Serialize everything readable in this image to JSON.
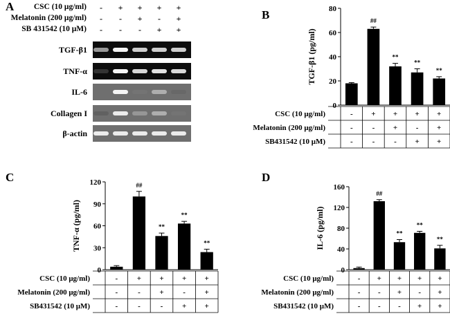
{
  "panel_a": {
    "letter": "A",
    "conditions": [
      {
        "label": "CSC (10 μg/ml)",
        "signs": [
          "-",
          "+",
          "+",
          "+",
          "+"
        ]
      },
      {
        "label": "Melatonin (200 μg/ml)",
        "signs": [
          "-",
          "-",
          "+",
          "-",
          "+"
        ]
      },
      {
        "label": "SB 431542 (10 μM)",
        "signs": [
          "-",
          "-",
          "-",
          "+",
          "+"
        ]
      }
    ],
    "gels": [
      {
        "label": "TGF-β1",
        "intensity": [
          0.55,
          0.95,
          0.75,
          0.75,
          0.75
        ]
      },
      {
        "label": "TNF-α",
        "intensity": [
          0.15,
          0.95,
          0.8,
          0.85,
          0.8
        ]
      },
      {
        "label": "IL-6",
        "intensity": [
          0.0,
          0.95,
          0.3,
          0.6,
          0.2
        ]
      },
      {
        "label": "Collagen I",
        "intensity": [
          0.1,
          0.9,
          0.5,
          0.6,
          0.3
        ]
      },
      {
        "label": "β-actin",
        "intensity": [
          0.9,
          0.9,
          0.9,
          0.9,
          0.9
        ]
      }
    ]
  },
  "chart_data": [
    {
      "letter": "B",
      "type": "bar",
      "ylabel": "TGF-β1 (pg/ml)",
      "ylim": [
        0,
        80
      ],
      "yticks": [
        0,
        20,
        40,
        60,
        80
      ],
      "values": [
        18,
        63,
        32,
        27,
        22
      ],
      "errors": [
        0.6,
        1.5,
        2.5,
        3,
        1.5
      ],
      "annotations": [
        "",
        "##",
        "**",
        "**",
        "**"
      ],
      "conditions": [
        {
          "label": "CSC (10 μg/ml)",
          "signs": [
            "-",
            "+",
            "+",
            "+",
            "+"
          ]
        },
        {
          "label": "Melatonin (200 μg/ml)",
          "signs": [
            "-",
            "-",
            "+",
            "-",
            "+"
          ]
        },
        {
          "label": "SB431542 (10 μM)",
          "signs": [
            "-",
            "-",
            "-",
            "+",
            "+"
          ]
        }
      ]
    },
    {
      "letter": "C",
      "type": "bar",
      "ylabel": "TNF-α (pg/ml)",
      "ylim": [
        0,
        120
      ],
      "yticks": [
        0,
        30,
        60,
        90,
        120
      ],
      "values": [
        4,
        100,
        46,
        63,
        24
      ],
      "errors": [
        1.5,
        7,
        4,
        3,
        4
      ],
      "annotations": [
        "",
        "##",
        "**",
        "**",
        "**"
      ],
      "conditions": [
        {
          "label": "CSC (10 μg/ml)",
          "signs": [
            "-",
            "+",
            "+",
            "+",
            "+"
          ]
        },
        {
          "label": "Melatonin (200 μg/ml)",
          "signs": [
            "-",
            "-",
            "+",
            "-",
            "+"
          ]
        },
        {
          "label": "SB431542 (10 μM)",
          "signs": [
            "-",
            "-",
            "-",
            "+",
            "+"
          ]
        }
      ]
    },
    {
      "letter": "D",
      "type": "bar",
      "ylabel": "IL-6 (pg/ml)",
      "ylim": [
        0,
        160
      ],
      "yticks": [
        0,
        40,
        80,
        120,
        160
      ],
      "values": [
        3,
        132,
        53,
        71,
        41
      ],
      "errors": [
        2,
        3,
        5,
        3,
        6
      ],
      "annotations": [
        "",
        "##",
        "**",
        "**",
        "**"
      ],
      "conditions": [
        {
          "label": "CSC (10 μg/ml)",
          "signs": [
            "-",
            "+",
            "+",
            "+",
            "+"
          ]
        },
        {
          "label": "Melatonin (200 μg/ml)",
          "signs": [
            "-",
            "-",
            "+",
            "-",
            "+"
          ]
        },
        {
          "label": "SB431542 (10 μM)",
          "signs": [
            "-",
            "-",
            "-",
            "+",
            "+"
          ]
        }
      ]
    }
  ]
}
